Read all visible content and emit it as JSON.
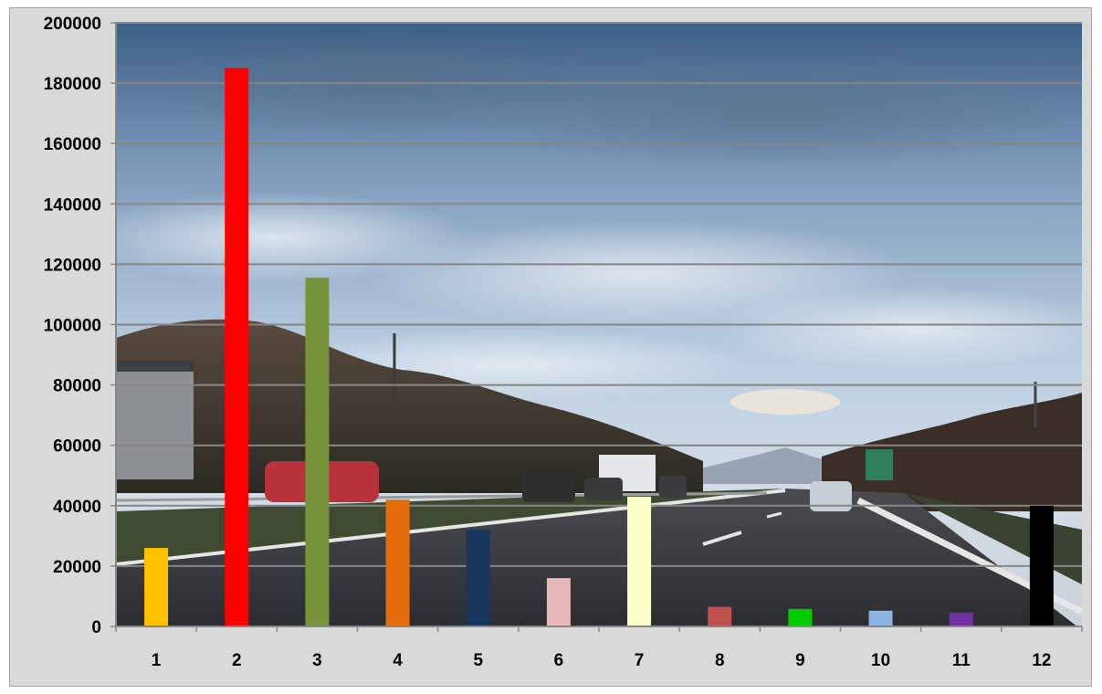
{
  "chart_data": {
    "type": "bar",
    "title": "",
    "xlabel": "",
    "ylabel": "",
    "categories": [
      "1",
      "2",
      "3",
      "4",
      "5",
      "6",
      "7",
      "8",
      "9",
      "10",
      "11",
      "12"
    ],
    "values": [
      26000,
      185000,
      115500,
      42000,
      32000,
      16000,
      43000,
      6500,
      5800,
      5200,
      4600,
      40000
    ],
    "colors": [
      "#ffc000",
      "#ff0000",
      "#77933c",
      "#e46c0a",
      "#17375e",
      "#e6b9b8",
      "#ffffcc",
      "#c0504d",
      "#00cc00",
      "#8eb4e3",
      "#7030a0",
      "#000000"
    ],
    "ylim": [
      0,
      200000
    ],
    "yticks": [
      "0",
      "20000",
      "40000",
      "60000",
      "80000",
      "100000",
      "120000",
      "140000",
      "160000",
      "180000",
      "200000"
    ],
    "grid": true,
    "legend": "none",
    "background": "photo of a highway under a cloudy sky",
    "chart_area_color": "#d9d9d9",
    "gridline_color": "#868686"
  }
}
